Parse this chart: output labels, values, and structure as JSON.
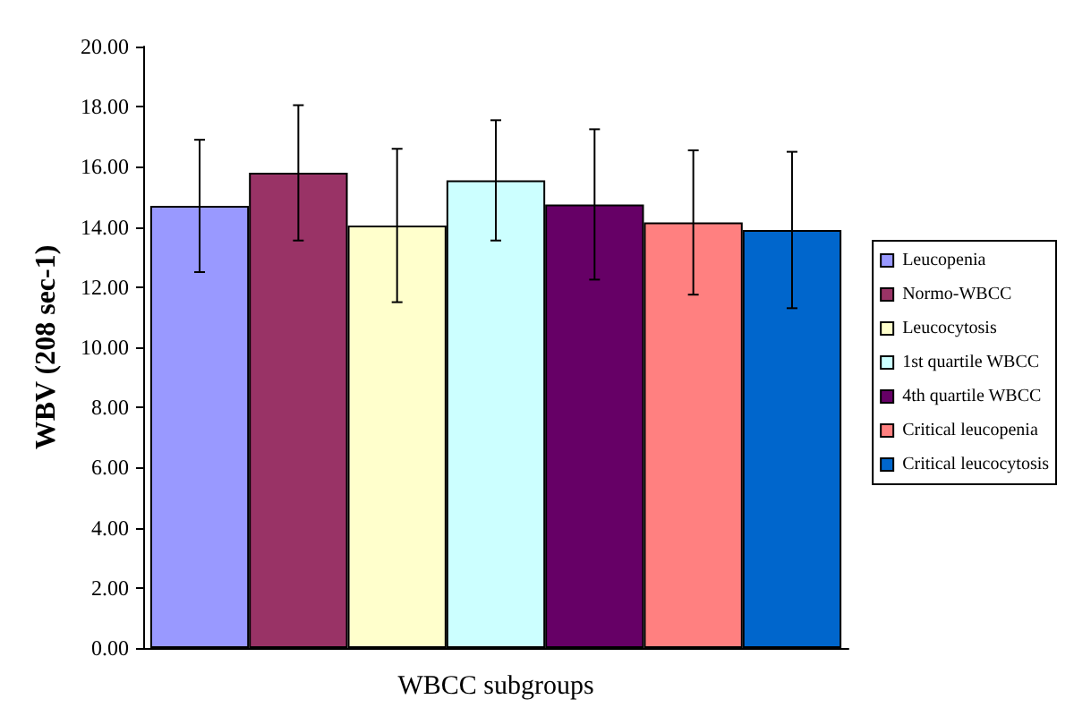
{
  "chart_data": {
    "type": "bar",
    "xlabel": "WBCC subgroups",
    "ylabel": "WBV (208 sec-1)",
    "categories": [
      null
    ],
    "series": [
      {
        "name": "Leucopenia",
        "color": "#9999ff",
        "values": [
          14.7
        ],
        "errors": [
          2.2
        ]
      },
      {
        "name": "Normo-WBCC",
        "color": "#993366",
        "values": [
          15.8
        ],
        "errors": [
          2.25
        ]
      },
      {
        "name": "Leucocytosis",
        "color": "#ffffcc",
        "values": [
          14.05
        ],
        "errors": [
          2.55
        ]
      },
      {
        "name": "1st quartile WBCC",
        "color": "#ccffff",
        "values": [
          15.55
        ],
        "errors": [
          2.0
        ]
      },
      {
        "name": "4th quartile WBCC",
        "color": "#660066",
        "values": [
          14.75
        ],
        "errors": [
          2.5
        ]
      },
      {
        "name": "Critical leucopenia",
        "color": "#ff8080",
        "values": [
          14.15
        ],
        "errors": [
          2.4
        ]
      },
      {
        "name": "Critical leucocytosis",
        "color": "#0066cc",
        "values": [
          13.9
        ],
        "errors": [
          2.6
        ]
      }
    ],
    "ylim": [
      0,
      20
    ],
    "yticks": [
      {
        "value": 0,
        "label": "0.00"
      },
      {
        "value": 2,
        "label": "2.00"
      },
      {
        "value": 4,
        "label": "4.00"
      },
      {
        "value": 6,
        "label": "6.00"
      },
      {
        "value": 8,
        "label": "8.00"
      },
      {
        "value": 10,
        "label": "10.00"
      },
      {
        "value": 12,
        "label": "12.00"
      },
      {
        "value": 14,
        "label": "14.00"
      },
      {
        "value": 16,
        "label": "16.00"
      },
      {
        "value": 18,
        "label": "18.00"
      },
      {
        "value": 20,
        "label": "20.00"
      }
    ],
    "legend": "right",
    "grid": false
  }
}
